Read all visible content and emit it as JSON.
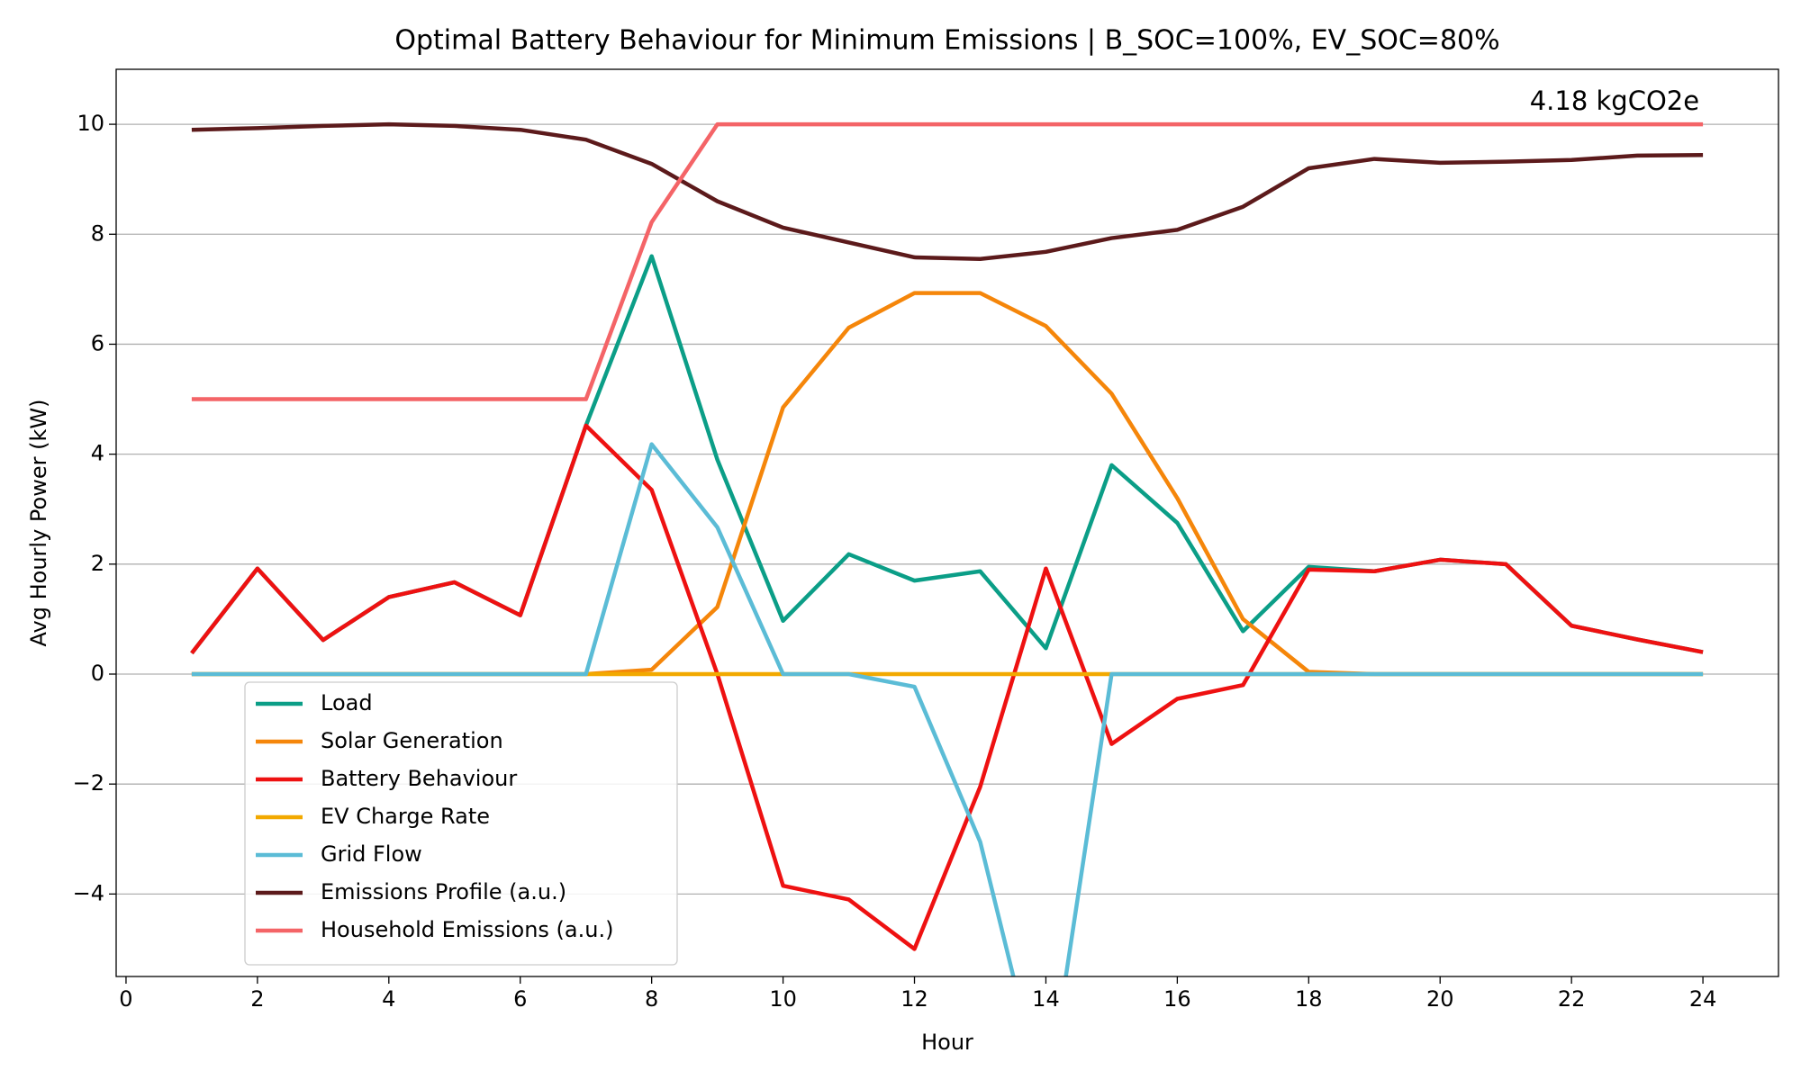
{
  "chart_data": {
    "type": "line",
    "title": "Optimal Battery Behaviour for Minimum Emissions | B_SOC=100%, EV_SOC=80%",
    "x_label": "Hour",
    "y_label": "Avg Hourly Power (kW)",
    "annotation": "4.18 kgCO2e",
    "x": [
      1,
      2,
      3,
      4,
      5,
      6,
      7,
      8,
      9,
      10,
      11,
      12,
      13,
      14,
      15,
      16,
      17,
      18,
      19,
      20,
      21,
      22,
      23,
      24
    ],
    "series": [
      {
        "name": "Load",
        "color": "#0b9e87",
        "values": [
          0.38,
          1.92,
          0.62,
          1.4,
          1.67,
          1.07,
          4.52,
          7.6,
          3.9,
          0.97,
          2.18,
          1.7,
          1.87,
          0.47,
          3.8,
          2.75,
          0.78,
          1.95,
          1.87,
          2.08,
          2.0,
          0.88,
          0.63,
          0.4
        ]
      },
      {
        "name": "Solar Generation",
        "color": "#f5860a",
        "values": [
          0,
          0,
          0,
          0,
          0,
          0,
          0,
          0.08,
          1.22,
          4.85,
          6.3,
          6.93,
          6.93,
          6.33,
          5.1,
          3.2,
          1.0,
          0.04,
          0,
          0,
          0,
          0,
          0,
          0
        ]
      },
      {
        "name": "Battery Behaviour",
        "color": "#ee1111",
        "values": [
          0.38,
          1.92,
          0.62,
          1.4,
          1.67,
          1.07,
          4.52,
          3.35,
          0,
          -3.85,
          -4.1,
          -5.0,
          -2.05,
          1.92,
          -1.27,
          -0.45,
          -0.2,
          1.9,
          1.87,
          2.08,
          2.0,
          0.88,
          0.63,
          0.4
        ]
      },
      {
        "name": "EV Charge Rate",
        "color": "#f2a900",
        "values": [
          0,
          0,
          0,
          0,
          0,
          0,
          0,
          0,
          0,
          0,
          0,
          0,
          0,
          0,
          0,
          0,
          0,
          0,
          0,
          0,
          0,
          0,
          0,
          0
        ]
      },
      {
        "name": "Grid Flow",
        "color": "#5bbcd6",
        "values": [
          0,
          0,
          0,
          0,
          0,
          0,
          0,
          4.18,
          2.67,
          0,
          0,
          -0.23,
          -3.05,
          -7.9,
          0,
          0,
          0,
          0,
          0,
          0,
          0,
          0,
          0,
          0
        ]
      },
      {
        "name": "Emissions Profile (a.u.)",
        "color": "#5c1a1b",
        "values": [
          9.9,
          9.93,
          9.97,
          10.0,
          9.97,
          9.9,
          9.72,
          9.28,
          8.6,
          8.12,
          7.85,
          7.58,
          7.55,
          7.68,
          7.93,
          8.08,
          8.5,
          9.2,
          9.37,
          9.3,
          9.32,
          9.35,
          9.43,
          9.44
        ]
      },
      {
        "name": "Household Emissions (a.u.)",
        "color": "#f46467",
        "values": [
          5,
          5,
          5,
          5,
          5,
          5,
          5,
          8.22,
          10,
          10,
          10,
          10,
          10,
          10,
          10,
          10,
          10,
          10,
          10,
          10,
          10,
          10,
          10,
          10
        ]
      }
    ],
    "xlim": [
      -0.15,
      25.15
    ],
    "xticks": [
      0,
      2,
      4,
      6,
      8,
      10,
      12,
      14,
      16,
      18,
      20,
      22,
      24
    ],
    "ylim": [
      -5.5,
      11
    ],
    "yticks": [
      {
        "value": -4,
        "label": "−4"
      },
      {
        "value": -2,
        "label": "−2"
      },
      0,
      2,
      4,
      6,
      8,
      10
    ],
    "grid": "y",
    "legend": "lower left"
  }
}
